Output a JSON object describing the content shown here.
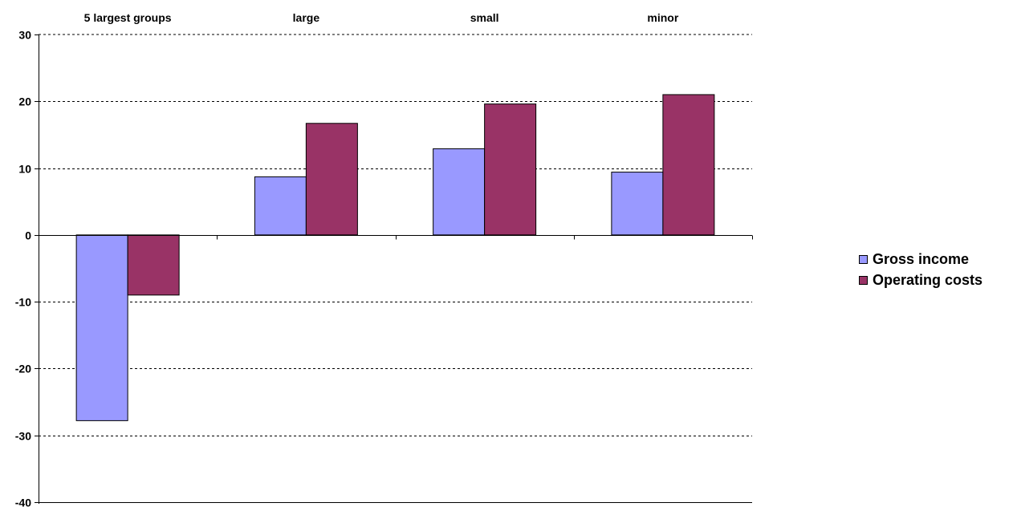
{
  "chart_data": {
    "type": "bar",
    "categories": [
      "5 largest groups",
      "large",
      "small",
      "minor"
    ],
    "series": [
      {
        "name": "Gross income",
        "values": [
          -27.8,
          8.7,
          12.9,
          9.4
        ],
        "color": "#9999ff"
      },
      {
        "name": "Operating costs",
        "values": [
          -9.0,
          16.7,
          19.6,
          21.0
        ],
        "color": "#993366"
      }
    ],
    "title": "",
    "xlabel": "",
    "ylabel": "",
    "ylim": [
      -40,
      30
    ],
    "yticks": [
      30,
      20,
      10,
      0,
      -10,
      -20,
      -30,
      -40
    ],
    "grid": true,
    "legend_position": "right",
    "category_labels_position": "top"
  }
}
